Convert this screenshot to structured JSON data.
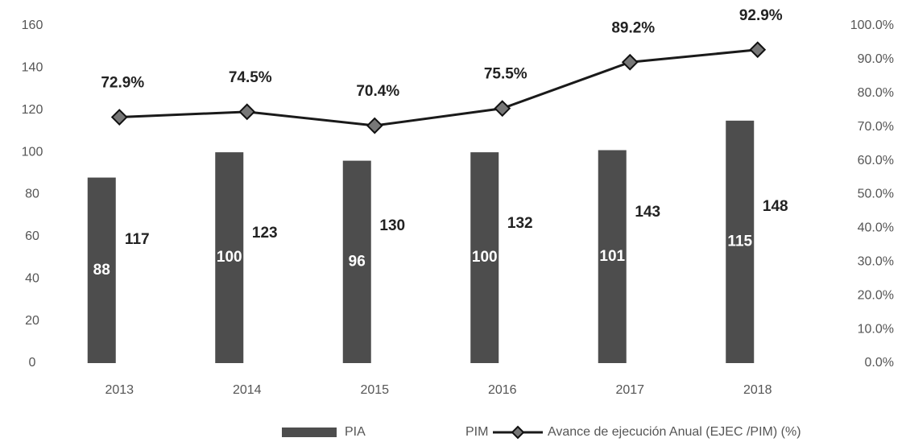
{
  "chart_data": {
    "type": "bar",
    "categories": [
      "2013",
      "2014",
      "2015",
      "2016",
      "2017",
      "2018"
    ],
    "series": [
      {
        "name": "PIA",
        "color": "#4d4d4d",
        "values": [
          88,
          100,
          96,
          100,
          101,
          115
        ]
      },
      {
        "name": "PIM",
        "color": "#ffffff",
        "values": [
          117,
          123,
          130,
          132,
          143,
          148
        ]
      },
      {
        "name": "Avance de ejecución Anual (EJEC /PIM) (%)",
        "type": "line",
        "axis": "y2",
        "color": "#1a1a1a",
        "values": [
          72.9,
          74.5,
          70.4,
          75.5,
          89.2,
          92.9
        ],
        "value_labels": [
          "72.9%",
          "74.5%",
          "70.4%",
          "75.5%",
          "89.2%",
          "92.9%"
        ]
      }
    ],
    "ylim": [
      0,
      160
    ],
    "yticks": [
      0,
      20,
      40,
      60,
      80,
      100,
      120,
      140,
      160
    ],
    "y2lim": [
      0,
      100
    ],
    "y2ticks": [
      {
        "value": 0,
        "label": "0.0%"
      },
      {
        "value": 10,
        "label": "10.0%"
      },
      {
        "value": 20,
        "label": "20.0%"
      },
      {
        "value": 30,
        "label": "30.0%"
      },
      {
        "value": 40,
        "label": "40.0%"
      },
      {
        "value": 50,
        "label": "50.0%"
      },
      {
        "value": 60,
        "label": "60.0%"
      },
      {
        "value": 70,
        "label": "70.0%"
      },
      {
        "value": 80,
        "label": "80.0%"
      },
      {
        "value": 90,
        "label": "90.0%"
      },
      {
        "value": 100,
        "label": "100.0%"
      }
    ],
    "legend": "bottom",
    "grid": false
  }
}
